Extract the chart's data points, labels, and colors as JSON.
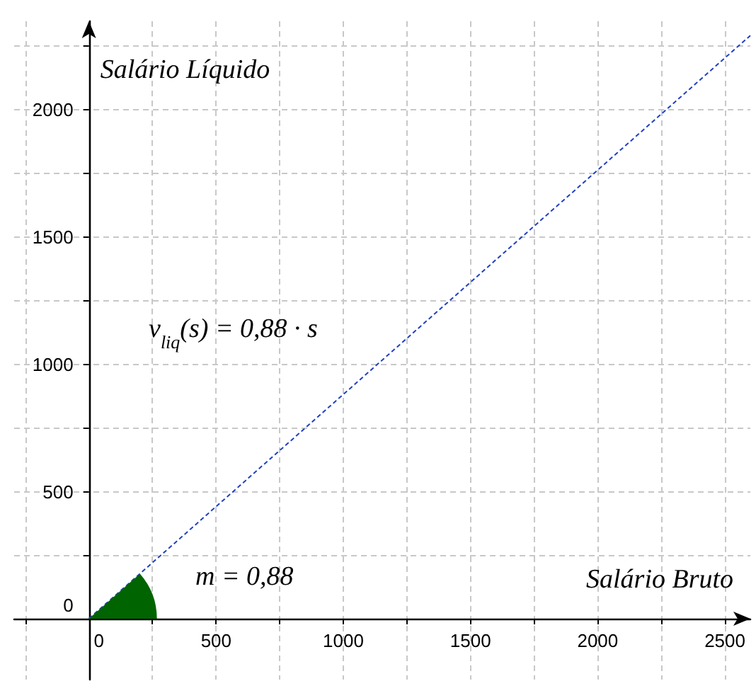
{
  "chart_data": {
    "type": "line",
    "xlabel": "Salário Bruto",
    "ylabel": "Salário Líquido",
    "x": [
      0,
      2600
    ],
    "series": [
      {
        "color": "#2040c0",
        "values": [
          0,
          2288
        ]
      }
    ],
    "xlim": [
      -294,
      2600
    ],
    "ylim": [
      -239,
      2344
    ],
    "xticks": [
      {
        "value": -250,
        "label": null
      },
      0,
      {
        "value": 250,
        "label": null
      },
      500,
      {
        "value": 750,
        "label": null
      },
      1000,
      {
        "value": 1250,
        "label": null
      },
      1500,
      {
        "value": 1750,
        "label": null
      },
      2000,
      {
        "value": 2250,
        "label": null
      },
      2500
    ],
    "yticks": [
      0,
      {
        "value": 250,
        "label": null
      },
      500,
      {
        "value": 750,
        "label": null
      },
      1000,
      {
        "value": 1250,
        "label": null
      },
      1500,
      {
        "value": 1750,
        "label": null
      },
      2000,
      {
        "value": 2250,
        "label": null
      }
    ],
    "grid": true,
    "marker": "none",
    "line_style": "dashed",
    "annotations": [
      "v$_{liq}$(s) = 0,88 · s",
      "m = 0,88"
    ]
  }
}
